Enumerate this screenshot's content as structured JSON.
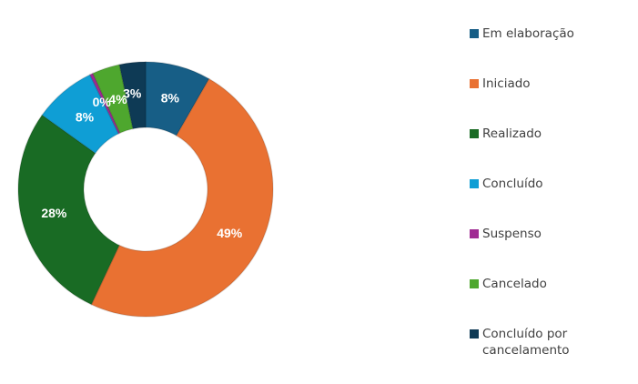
{
  "chart_data": {
    "type": "pie",
    "subtype": "donut",
    "title": "",
    "categories": [
      "Em elaboração",
      "Iniciado",
      "Realizado",
      "Concluído",
      "Suspenso",
      "Cancelado",
      "Concluído por cancelamento"
    ],
    "values": [
      8.3,
      48.7,
      27.9,
      7.9,
      0.4,
      3.5,
      3.3
    ],
    "data_labels": [
      "8%",
      "49%",
      "28%",
      "8%",
      "0%",
      "4%",
      "3%"
    ],
    "colors": [
      "#175e86",
      "#e97132",
      "#196b24",
      "#0f9ed5",
      "#a02b93",
      "#4ea72e",
      "#0e3a55"
    ],
    "legend_placement": "right"
  }
}
